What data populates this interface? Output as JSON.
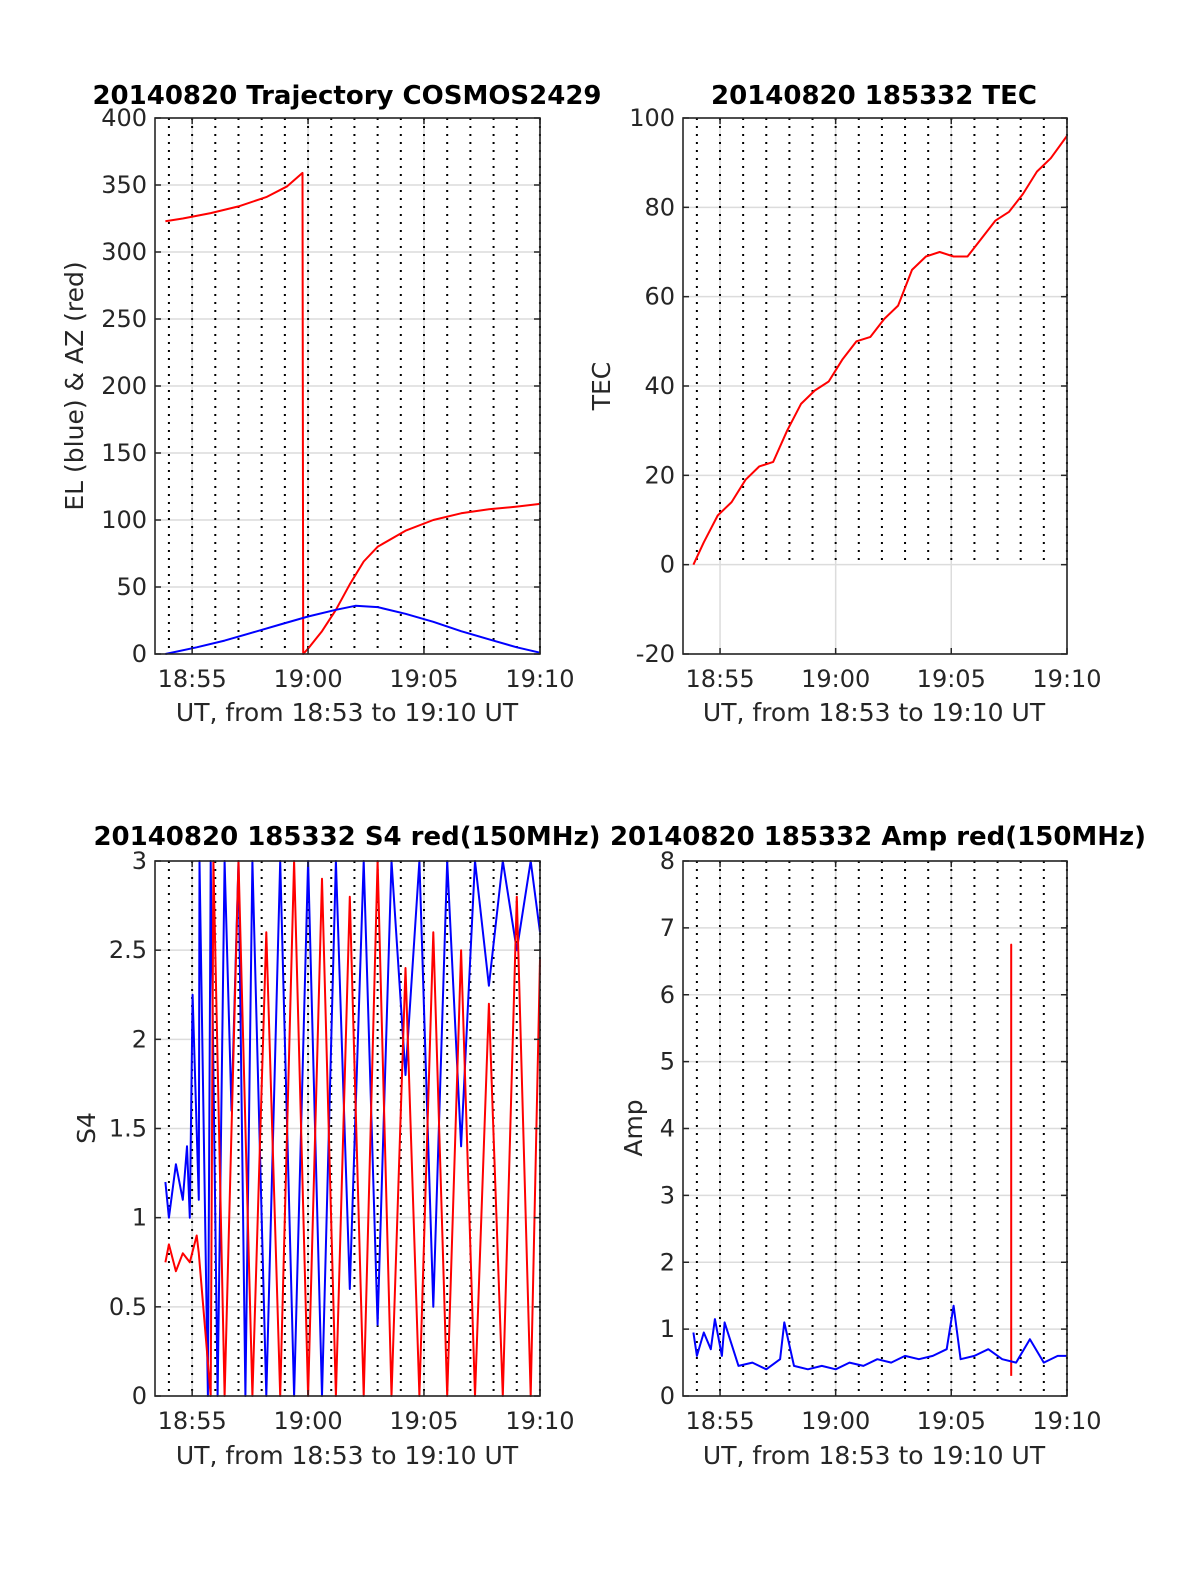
{
  "figure": {
    "background": "#ffffff"
  },
  "colors": {
    "red": "#ff0000",
    "blue": "#0000ff",
    "grid": "#dcdcdc",
    "vline": "#000000"
  },
  "chart_data": [
    {
      "id": "traj",
      "type": "line",
      "title": "20140820 Trajectory COSMOS2429",
      "xlabel": "UT, from 18:53 to 19:10 UT",
      "ylabel": "EL (blue) & AZ (red)",
      "xlim": [
        18.89,
        19.1667
      ],
      "ylim": [
        0,
        400
      ],
      "x_ticks": [
        18.9167,
        19.0,
        19.0833,
        19.1667
      ],
      "x_tick_labels": [
        "18:55",
        "19:00",
        "19:05",
        "19:10"
      ],
      "y_ticks": [
        0,
        50,
        100,
        150,
        200,
        250,
        300,
        350,
        400
      ],
      "y_tick_labels": [
        "0",
        "50",
        "100",
        "150",
        "200",
        "250",
        "300",
        "350",
        "400"
      ],
      "grid": true,
      "dotted_vlines_every_minutes": 1,
      "series": [
        {
          "color": "red",
          "x": [
            18.8975,
            18.91,
            18.93,
            18.95,
            18.97,
            18.985,
            18.996,
            18.9965,
            19.0,
            19.01,
            19.02,
            19.03,
            19.04,
            19.05,
            19.07,
            19.09,
            19.11,
            19.13,
            19.15,
            19.1667
          ],
          "y": [
            323,
            325,
            329,
            334,
            341,
            349,
            359,
            0,
            4,
            17,
            33,
            52,
            69,
            80,
            92,
            100,
            105,
            108,
            110,
            112
          ]
        },
        {
          "color": "blue",
          "x": [
            18.8975,
            18.92,
            18.94,
            18.96,
            18.98,
            19.0,
            19.02,
            19.034,
            19.05,
            19.07,
            19.09,
            19.11,
            19.13,
            19.15,
            19.1667
          ],
          "y": [
            0,
            5,
            10,
            16,
            22,
            28,
            33,
            36,
            35,
            30,
            24,
            17,
            11,
            5,
            1
          ]
        }
      ]
    },
    {
      "id": "tec",
      "type": "line",
      "title": "20140820 185332 TEC",
      "xlabel": "UT, from 18:53 to 19:10 UT",
      "ylabel": "TEC",
      "xlim": [
        18.89,
        19.1667
      ],
      "ylim": [
        -20,
        100
      ],
      "x_ticks": [
        18.9167,
        19.0,
        19.0833,
        19.1667
      ],
      "x_tick_labels": [
        "18:55",
        "19:00",
        "19:05",
        "19:10"
      ],
      "y_ticks": [
        -20,
        0,
        20,
        40,
        60,
        80,
        100
      ],
      "y_tick_labels": [
        "-20",
        "0",
        "20",
        "40",
        "60",
        "80",
        "100"
      ],
      "grid": true,
      "dotted_vlines_every_minutes": 1,
      "dotted_vlines_ylim": [
        0,
        100
      ],
      "series": [
        {
          "color": "red",
          "x": [
            18.8975,
            18.905,
            18.915,
            18.925,
            18.935,
            18.945,
            18.955,
            18.965,
            18.975,
            18.985,
            18.995,
            19.005,
            19.015,
            19.025,
            19.035,
            19.045,
            19.055,
            19.065,
            19.075,
            19.085,
            19.095,
            19.105,
            19.115,
            19.125,
            19.135,
            19.145,
            19.155,
            19.1667
          ],
          "y": [
            0,
            5,
            11,
            14,
            19,
            22,
            23,
            30,
            36,
            39,
            41,
            46,
            50,
            51,
            55,
            58,
            66,
            69,
            70,
            69,
            69,
            73,
            77,
            79,
            83,
            88,
            91,
            96
          ]
        }
      ]
    },
    {
      "id": "s4",
      "type": "line",
      "title": "20140820 185332 S4 red(150MHz)",
      "xlabel": "UT, from 18:53 to 19:10 UT",
      "ylabel": "S4",
      "xlim": [
        18.89,
        19.1667
      ],
      "ylim": [
        0,
        3
      ],
      "x_ticks": [
        18.9167,
        19.0,
        19.0833,
        19.1667
      ],
      "x_tick_labels": [
        "18:55",
        "19:00",
        "19:05",
        "19:10"
      ],
      "y_ticks": [
        0,
        0.5,
        1,
        1.5,
        2,
        2.5,
        3
      ],
      "y_tick_labels": [
        "0",
        "0.5",
        "1",
        "1.5",
        "2",
        "2.5",
        "3"
      ],
      "grid": true,
      "dotted_vlines_every_minutes": 1,
      "series": [
        {
          "color": "blue",
          "x": [
            18.8975,
            18.9,
            18.905,
            18.91,
            18.913,
            18.915,
            18.917,
            18.9215,
            18.922,
            18.928,
            18.93,
            18.935,
            18.94,
            18.945,
            18.95,
            18.955,
            18.96,
            18.97,
            18.98,
            18.99,
            19.0,
            19.01,
            19.02,
            19.03,
            19.04,
            19.05,
            19.06,
            19.07,
            19.08,
            19.09,
            19.1,
            19.11,
            19.12,
            19.13,
            19.14,
            19.15,
            19.16,
            19.1667
          ],
          "y": [
            1.2,
            1.0,
            1.3,
            1.1,
            1.4,
            1.0,
            2.25,
            1.1,
            3.0,
            0,
            3.0,
            0,
            3.0,
            1.6,
            3.0,
            0,
            3.0,
            0,
            3.0,
            0,
            3.0,
            0,
            3.0,
            0.6,
            3.0,
            0.4,
            3.0,
            1.8,
            3.0,
            0.5,
            3.0,
            1.4,
            3.0,
            2.3,
            3.0,
            2.5,
            3.0,
            2.6
          ]
        },
        {
          "color": "red",
          "x": [
            18.8975,
            18.9,
            18.905,
            18.91,
            18.915,
            18.92,
            18.9215,
            18.93,
            18.932,
            18.94,
            18.95,
            18.96,
            18.97,
            18.98,
            18.99,
            19.0,
            19.01,
            19.02,
            19.03,
            19.04,
            19.05,
            19.06,
            19.07,
            19.08,
            19.09,
            19.1,
            19.11,
            19.12,
            19.13,
            19.14,
            19.15,
            19.16,
            19.1667
          ],
          "y": [
            0.75,
            0.85,
            0.7,
            0.8,
            0.75,
            0.9,
            0.8,
            0,
            3.0,
            0,
            3.0,
            0,
            2.6,
            0,
            3.0,
            0,
            2.9,
            0,
            2.8,
            0,
            3.0,
            0,
            2.4,
            0,
            2.6,
            0,
            2.5,
            0,
            2.2,
            0,
            2.8,
            0,
            2.45
          ]
        }
      ]
    },
    {
      "id": "amp",
      "type": "line",
      "title": "20140820 185332 Amp red(150MHz)",
      "xlabel": "UT, from 18:53 to 19:10 UT",
      "ylabel": "Amp",
      "xlim": [
        18.89,
        19.1667
      ],
      "ylim": [
        0,
        8
      ],
      "x_ticks": [
        18.9167,
        19.0,
        19.0833,
        19.1667
      ],
      "x_tick_labels": [
        "18:55",
        "19:00",
        "19:05",
        "19:10"
      ],
      "y_ticks": [
        0,
        1,
        2,
        3,
        4,
        5,
        6,
        7,
        8
      ],
      "y_tick_labels": [
        "0",
        "1",
        "2",
        "3",
        "4",
        "5",
        "6",
        "7",
        "8"
      ],
      "grid": true,
      "dotted_vlines_every_minutes": 1,
      "series": [
        {
          "color": "red",
          "x": [
            19.1265,
            19.1265,
            19.1265
          ],
          "y": [
            0.3,
            6.75,
            0.3
          ]
        },
        {
          "color": "blue",
          "x": [
            18.8975,
            18.9,
            18.905,
            18.91,
            18.913,
            18.918,
            18.92,
            18.93,
            18.94,
            18.95,
            18.96,
            18.963,
            18.97,
            18.98,
            18.99,
            19.0,
            19.01,
            19.02,
            19.03,
            19.04,
            19.05,
            19.06,
            19.07,
            19.08,
            19.085,
            19.09,
            19.1,
            19.11,
            19.12,
            19.13,
            19.14,
            19.15,
            19.16,
            19.1667
          ],
          "y": [
            0.95,
            0.6,
            0.95,
            0.7,
            1.15,
            0.6,
            1.1,
            0.45,
            0.5,
            0.4,
            0.55,
            1.1,
            0.45,
            0.4,
            0.45,
            0.4,
            0.5,
            0.45,
            0.55,
            0.5,
            0.6,
            0.55,
            0.6,
            0.7,
            1.35,
            0.55,
            0.6,
            0.7,
            0.55,
            0.5,
            0.85,
            0.5,
            0.6,
            0.6
          ]
        }
      ]
    }
  ]
}
